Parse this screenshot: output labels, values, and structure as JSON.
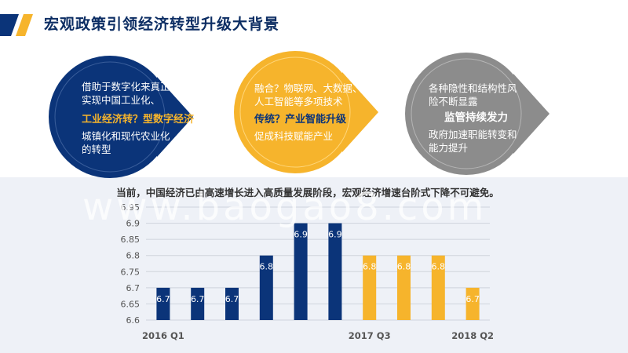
{
  "title": "宏观政策引领经济转型升级大背景",
  "panels": [
    {
      "lines": [
        "借助于数字化来真正",
        "实现中国工业化、"
      ],
      "highlight": "工业经济转？型数字经济",
      "tail": [
        "城镇化和现代农业化",
        "的转型"
      ]
    },
    {
      "lines": [
        "融合？物联网、大数据、",
        "人工智能等多项技术"
      ],
      "highlight": "传统？产业智能升级",
      "tail": [
        "促成科技赋能产业"
      ]
    },
    {
      "lines": [
        "各种隐性和结构性风",
        "险不断显露"
      ],
      "highlight": "监管持续发力",
      "tail": [
        "政府加速职能转变和",
        "能力提升"
      ]
    }
  ],
  "watermark": "www.baogao8.com",
  "chart_data": {
    "type": "bar",
    "title": "当前，中国经济已由高速增长进入高质量发展阶段，宏观经济增速台阶式下降不可避免。",
    "categories": [
      "2016 Q1",
      "",
      "",
      "",
      "",
      "",
      "2017 Q3",
      "",
      "",
      "2018 Q2"
    ],
    "values": [
      6.7,
      6.7,
      6.7,
      6.8,
      6.9,
      6.9,
      6.8,
      6.8,
      6.8,
      6.7
    ],
    "data_labels": [
      "6.7",
      "6.7",
      "6.7",
      "6.8",
      "6.9",
      "6.9",
      "6.8",
      "6.8",
      "6.8",
      "6.7"
    ],
    "yticks": [
      "6.6",
      "6.65",
      "6.7",
      "6.75",
      "6.8",
      "6.85",
      "6.9",
      "6.95"
    ],
    "ylim": [
      6.6,
      6.95
    ],
    "bar_colors": [
      "#0b3479",
      "#0b3479",
      "#0b3479",
      "#0b3479",
      "#0b3479",
      "#0b3479",
      "#f6b42c",
      "#f6b42c",
      "#f6b42c",
      "#f6b42c"
    ],
    "grid": true
  }
}
